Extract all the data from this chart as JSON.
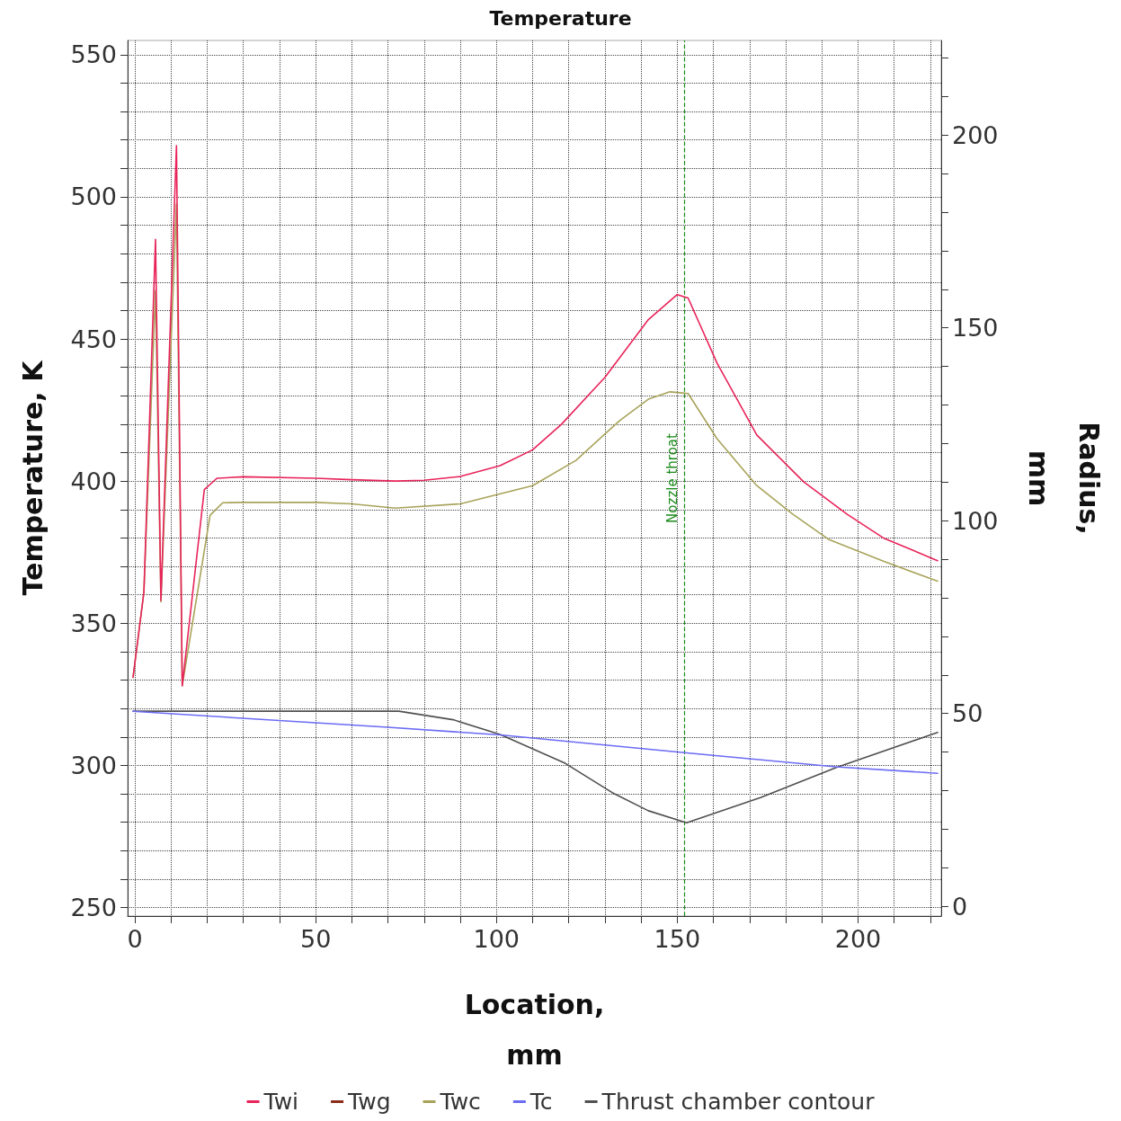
{
  "chart_data": {
    "type": "line",
    "title": "Temperature",
    "xlabel": "Location,\nmm",
    "ylabel": "Temperature, K",
    "y2label": "Radius,\nmm",
    "xlim": [
      -2,
      223
    ],
    "ylim": [
      247,
      555
    ],
    "y2lim": [
      -2.5,
      224.5
    ],
    "xticks": [
      0,
      {
        "value": 10,
        "label": null
      },
      {
        "value": 20,
        "label": null
      },
      {
        "value": 30,
        "label": null
      },
      {
        "value": 40,
        "label": null
      },
      50,
      {
        "value": 60,
        "label": null
      },
      {
        "value": 70,
        "label": null
      },
      {
        "value": 80,
        "label": null
      },
      {
        "value": 90,
        "label": null
      },
      100,
      {
        "value": 110,
        "label": null
      },
      {
        "value": 120,
        "label": null
      },
      {
        "value": 130,
        "label": null
      },
      {
        "value": 140,
        "label": null
      },
      150,
      {
        "value": 160,
        "label": null
      },
      {
        "value": 170,
        "label": null
      },
      {
        "value": 180,
        "label": null
      },
      {
        "value": 190,
        "label": null
      },
      200,
      {
        "value": 210,
        "label": null
      },
      {
        "value": 220,
        "label": null
      }
    ],
    "yticks": [
      250,
      {
        "value": 260,
        "label": null
      },
      {
        "value": 270,
        "label": null
      },
      {
        "value": 280,
        "label": null
      },
      {
        "value": 290,
        "label": null
      },
      300,
      {
        "value": 310,
        "label": null
      },
      {
        "value": 320,
        "label": null
      },
      {
        "value": 330,
        "label": null
      },
      {
        "value": 340,
        "label": null
      },
      350,
      {
        "value": 360,
        "label": null
      },
      {
        "value": 370,
        "label": null
      },
      {
        "value": 380,
        "label": null
      },
      {
        "value": 390,
        "label": null
      },
      400,
      {
        "value": 410,
        "label": null
      },
      {
        "value": 420,
        "label": null
      },
      {
        "value": 430,
        "label": null
      },
      {
        "value": 440,
        "label": null
      },
      450,
      {
        "value": 460,
        "label": null
      },
      {
        "value": 470,
        "label": null
      },
      {
        "value": 480,
        "label": null
      },
      {
        "value": 490,
        "label": null
      },
      500,
      {
        "value": 510,
        "label": null
      },
      {
        "value": 520,
        "label": null
      },
      {
        "value": 530,
        "label": null
      },
      {
        "value": 540,
        "label": null
      },
      550
    ],
    "y2ticks": [
      0,
      {
        "value": 10,
        "label": null
      },
      {
        "value": 20,
        "label": null
      },
      {
        "value": 30,
        "label": null
      },
      {
        "value": 40,
        "label": null
      },
      50,
      {
        "value": 60,
        "label": null
      },
      {
        "value": 70,
        "label": null
      },
      {
        "value": 80,
        "label": null
      },
      {
        "value": 90,
        "label": null
      },
      100,
      {
        "value": 110,
        "label": null
      },
      {
        "value": 120,
        "label": null
      },
      {
        "value": 130,
        "label": null
      },
      {
        "value": 140,
        "label": null
      },
      150,
      {
        "value": 160,
        "label": null
      },
      {
        "value": 170,
        "label": null
      },
      {
        "value": 180,
        "label": null
      },
      {
        "value": 190,
        "label": null
      },
      200,
      {
        "value": 210,
        "label": null
      },
      {
        "value": 220,
        "label": null
      }
    ],
    "grid": true,
    "legend": "bottom",
    "marker": "none",
    "line_style": "solid",
    "ref_lines": [
      {
        "axis": "x",
        "value": 152,
        "label": "Nozzle throat",
        "color": "#1a8a1a",
        "line_style": "dashed"
      }
    ],
    "series": [
      {
        "name": "Twi",
        "color": "#e8245a",
        "x": [
          -0.5,
          2.5,
          5.7,
          7.2,
          11.5,
          13.1,
          19.2,
          22.7,
          30,
          50,
          60,
          72,
          80,
          90,
          101,
          110,
          118,
          130,
          142,
          150,
          153,
          161,
          172,
          185,
          197,
          207,
          222
        ],
        "values": [
          331,
          361,
          485,
          358,
          518,
          328,
          397,
          401,
          401.5,
          401,
          400.5,
          400,
          400.3,
          401.6,
          405.4,
          411,
          420,
          436.5,
          456.8,
          465.6,
          464.4,
          441.5,
          416.2,
          399.7,
          388.3,
          380,
          372
        ]
      },
      {
        "name": "Twg",
        "color": "#8b2d1a",
        "values": [
          null
        ]
      },
      {
        "name": "Twc",
        "color": "#a8a35a",
        "x": [
          -0.5,
          2.5,
          5.7,
          7.2,
          11.5,
          13.1,
          20.8,
          24.3,
          30,
          50,
          60,
          72,
          90,
          110,
          122,
          134,
          142,
          148,
          153,
          161,
          172,
          182,
          192,
          207,
          222
        ],
        "values": [
          331,
          361,
          467,
          357.5,
          497.5,
          328,
          388,
          392.4,
          392.5,
          392.5,
          392,
          390.5,
          392,
          398.4,
          407.3,
          421.2,
          428.8,
          431.4,
          430.8,
          414.9,
          398.4,
          388.3,
          379.4,
          371.8,
          364.8
        ]
      },
      {
        "name": "Tc",
        "color": "#6b6bf5",
        "x": [
          -0.5,
          70,
          101,
          152.6,
          193.8,
          222
        ],
        "values": [
          319,
          313.4,
          310.7,
          304.4,
          299.5,
          297.2
        ]
      },
      {
        "name": "Thrust chamber contour",
        "color": "#505050",
        "axis": "y2",
        "x": [
          -0.5,
          73,
          88,
          101,
          119,
          132,
          142,
          152.6,
          173,
          194,
          222
        ],
        "values": [
          50.6,
          50.6,
          48.4,
          44.6,
          37.1,
          29.5,
          24.8,
          21.7,
          28.2,
          36,
          45.1
        ]
      }
    ]
  }
}
